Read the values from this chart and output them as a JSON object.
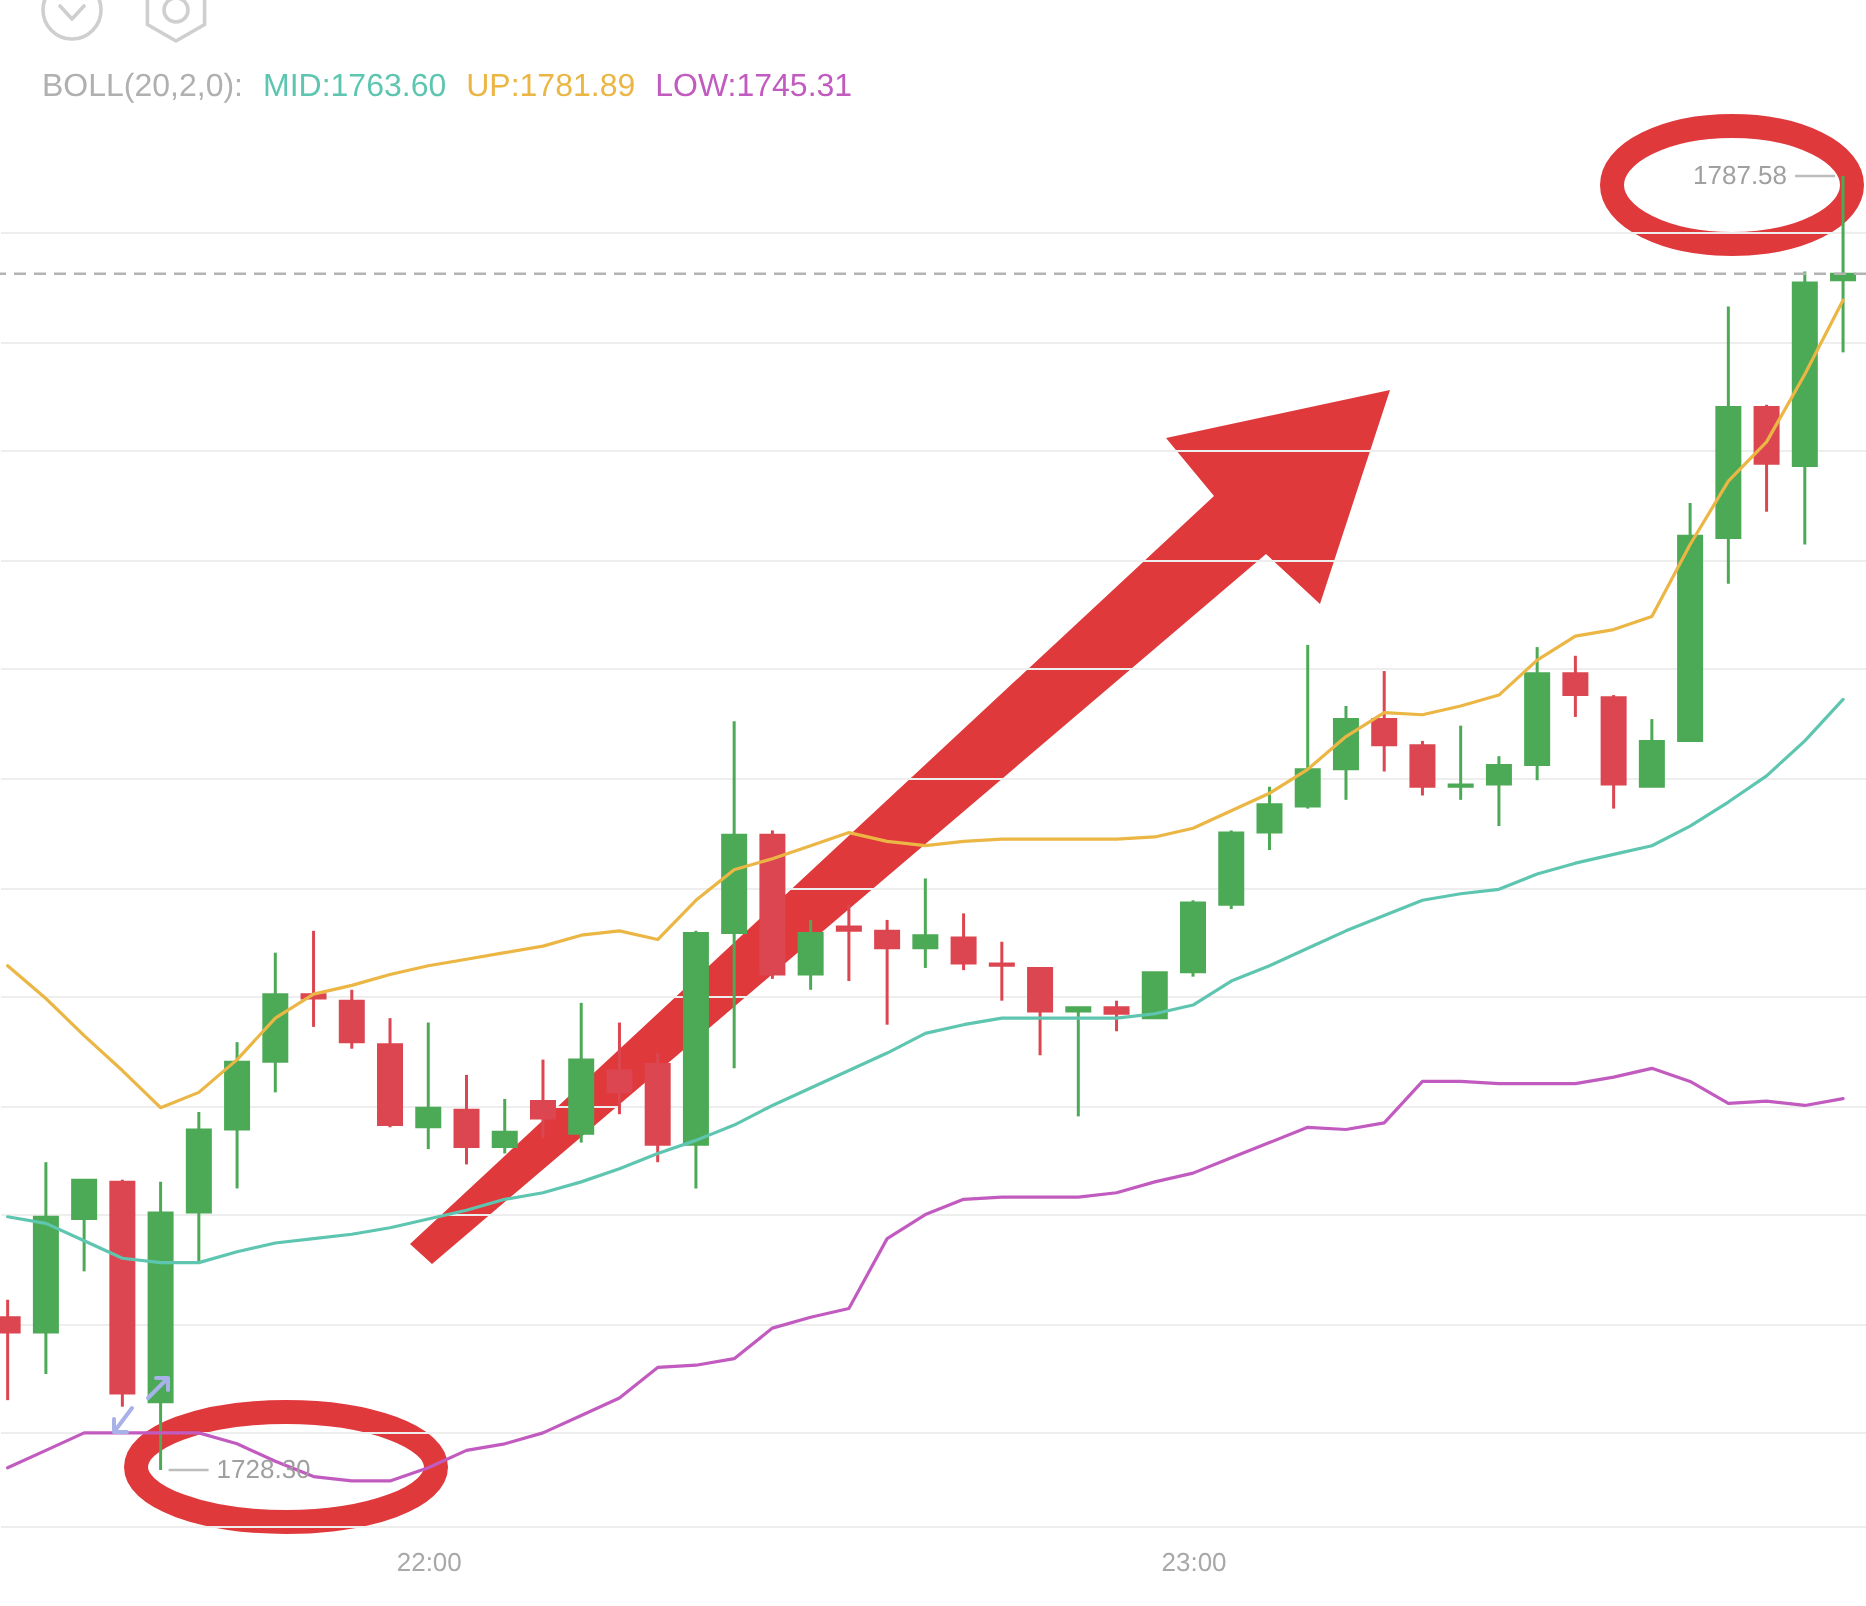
{
  "chart_data": {
    "type": "candlestick",
    "legend_title": "BOLL(20,2,0):",
    "legend": "top left",
    "grid": "y",
    "tick_labels": "x",
    "x": [
      21.45,
      21.5,
      21.55,
      21.6,
      21.65,
      21.7,
      21.75,
      21.8,
      21.85,
      21.9,
      21.95,
      22,
      22.05,
      22.1,
      22.15,
      22.2,
      22.25,
      22.3,
      22.35,
      22.4,
      22.45,
      22.5,
      22.55,
      22.6,
      22.65,
      22.7,
      22.75,
      22.8,
      22.85,
      22.9,
      22.95,
      23,
      23.05,
      23.1,
      23.15,
      23.2,
      23.25,
      23.3,
      23.35,
      23.4,
      23.45,
      23.5,
      23.55,
      23.6,
      23.65,
      23.7,
      23.75,
      23.8,
      23.85
    ],
    "xlim": [
      21.44,
      23.88
    ],
    "xticks": [
      {
        "value": 22,
        "label": "22:00"
      },
      {
        "value": 23,
        "label": "23:00"
      }
    ],
    "yticks": [
      1730,
      1735,
      1740,
      1745,
      1750,
      1755,
      1760,
      1765,
      1770,
      1775,
      1780,
      1785
    ],
    "ohlc": [
      [
        1735.3,
        1736.1,
        1731.5,
        1734.6
      ],
      [
        1734.6,
        1742.4,
        1732.7,
        1739.9
      ],
      [
        1739.8,
        1741.6,
        1737.4,
        1741.6
      ],
      [
        1741.5,
        1741.6,
        1731.2,
        1731.8
      ],
      [
        1731.4,
        1741.5,
        1728.3,
        1740.1
      ],
      [
        1740.1,
        1744.7,
        1737.8,
        1743.9
      ],
      [
        1743.9,
        1747.9,
        1741.2,
        1747.0
      ],
      [
        1747.0,
        1752.0,
        1745.6,
        1750.1
      ],
      [
        1750.1,
        1753.0,
        1748.6,
        1749.9
      ],
      [
        1749.8,
        1750.3,
        1747.6,
        1747.9
      ],
      [
        1747.8,
        1749.0,
        1744.0,
        1744.1
      ],
      [
        1744.0,
        1748.8,
        1743.0,
        1744.9
      ],
      [
        1744.8,
        1746.4,
        1742.3,
        1743.1
      ],
      [
        1743.1,
        1745.3,
        1742.8,
        1743.8
      ],
      [
        1745.2,
        1747.1,
        1743.5,
        1744.4
      ],
      [
        1743.7,
        1749.7,
        1743.3,
        1747.1
      ],
      [
        1746.6,
        1748.8,
        1744.6,
        1745.6
      ],
      [
        1746.9,
        1747.4,
        1742.4,
        1743.2
      ],
      [
        1743.2,
        1753.0,
        1741.2,
        1752.9
      ],
      [
        1752.9,
        1762.6,
        1746.7,
        1757.4
      ],
      [
        1757.4,
        1757.6,
        1750.8,
        1751.0
      ],
      [
        1751.0,
        1753.5,
        1750.3,
        1752.9
      ],
      [
        1753.2,
        1754.2,
        1750.7,
        1753.0
      ],
      [
        1753.0,
        1753.5,
        1748.7,
        1752.2
      ],
      [
        1752.2,
        1755.4,
        1751.3,
        1752.8
      ],
      [
        1752.7,
        1753.8,
        1751.2,
        1751.5
      ],
      [
        1751.5,
        1752.5,
        1749.8,
        1751.4
      ],
      [
        1751.3,
        1751.3,
        1747.3,
        1749.3
      ],
      [
        1749.3,
        1749.5,
        1744.5,
        1749.5
      ],
      [
        1749.5,
        1749.8,
        1748.4,
        1749.2
      ],
      [
        1749.0,
        1751.1,
        1749.0,
        1751.1
      ],
      [
        1751.1,
        1754.4,
        1750.9,
        1754.3
      ],
      [
        1754.2,
        1757.6,
        1754.0,
        1757.5
      ],
      [
        1757.5,
        1759.6,
        1756.7,
        1758.8
      ],
      [
        1758.7,
        1766.1,
        1758.6,
        1760.4
      ],
      [
        1760.4,
        1763.3,
        1759.0,
        1762.7
      ],
      [
        1762.7,
        1764.9,
        1760.3,
        1761.5
      ],
      [
        1761.5,
        1761.7,
        1759.2,
        1759.6
      ],
      [
        1759.6,
        1762.4,
        1759.0,
        1759.7
      ],
      [
        1759.7,
        1761.0,
        1757.8,
        1760.6
      ],
      [
        1760.6,
        1766.0,
        1759.9,
        1764.8
      ],
      [
        1764.8,
        1765.6,
        1762.8,
        1763.8
      ],
      [
        1763.7,
        1763.8,
        1758.6,
        1759.7
      ],
      [
        1759.6,
        1762.7,
        1759.6,
        1761.7
      ],
      [
        1761.7,
        1772.6,
        1761.7,
        1771.1
      ],
      [
        1771.0,
        1781.6,
        1768.9,
        1777.0
      ],
      [
        1777.0,
        1777.1,
        1772.2,
        1774.4
      ],
      [
        1774.3,
        1783.2,
        1770.7,
        1782.7
      ],
      [
        1782.8,
        1787.58,
        1779.5,
        1783.1
      ]
    ],
    "colors": [
      "#dc4650",
      "#4caa56",
      "#4caa56",
      "#dc4650",
      "#4caa56",
      "#4caa56",
      "#4caa56",
      "#4caa56",
      "#dc4650",
      "#dc4650",
      "#dc4650",
      "#4caa56",
      "#dc4650",
      "#4caa56",
      "#dc4650",
      "#4caa56",
      "#dc4650",
      "#dc4650",
      "#4caa56",
      "#4caa56",
      "#dc4650",
      "#4caa56",
      "#dc4650",
      "#dc4650",
      "#4caa56",
      "#dc4650",
      "#dc4650",
      "#dc4650",
      "#4caa56",
      "#dc4650",
      "#4caa56",
      "#4caa56",
      "#4caa56",
      "#4caa56",
      "#4caa56",
      "#4caa56",
      "#dc4650",
      "#dc4650",
      "#4caa56",
      "#4caa56",
      "#4caa56",
      "#dc4650",
      "#dc4650",
      "#4caa56",
      "#4caa56",
      "#4caa56",
      "#dc4650",
      "#4caa56",
      "#4caa56"
    ],
    "series": [
      {
        "name": "MID:1763.60",
        "type": "line",
        "color": "#5ec6b0",
        "values": [
          1739.9,
          1739.6,
          1738.8,
          1738.0,
          1737.8,
          1737.8,
          1738.3,
          1738.7,
          1738.9,
          1739.1,
          1739.4,
          1739.8,
          1740.2,
          1740.7,
          1741.0,
          1741.5,
          1742.1,
          1742.8,
          1743.4,
          1744.1,
          1745.0,
          1745.8,
          1746.6,
          1747.4,
          1748.3,
          1748.7,
          1749.0,
          1749.0,
          1749.0,
          1749.0,
          1749.2,
          1749.6,
          1750.7,
          1751.4,
          1752.2,
          1753.0,
          1753.7,
          1754.4,
          1754.7,
          1754.9,
          1755.6,
          1756.1,
          1756.5,
          1756.9,
          1757.8,
          1758.9,
          1760.1,
          1761.7,
          1763.6
        ]
      },
      {
        "name": "UP:1781.89",
        "type": "line",
        "color": "#ebb644",
        "values": [
          1751.4,
          1749.9,
          1748.2,
          1746.6,
          1744.9,
          1745.6,
          1747.1,
          1749.0,
          1750.1,
          1750.5,
          1751.0,
          1751.4,
          1751.7,
          1752.0,
          1752.3,
          1752.8,
          1753.0,
          1752.6,
          1754.4,
          1755.8,
          1756.3,
          1756.9,
          1757.5,
          1757.1,
          1756.9,
          1757.1,
          1757.2,
          1757.2,
          1757.2,
          1757.2,
          1757.3,
          1757.7,
          1758.5,
          1759.3,
          1760.4,
          1761.9,
          1763.0,
          1762.9,
          1763.3,
          1763.8,
          1765.4,
          1766.5,
          1766.8,
          1767.4,
          1770.7,
          1773.6,
          1775.4,
          1778.5,
          1781.89
        ]
      },
      {
        "name": "LOW:1745.31",
        "type": "line",
        "color": "#c25bbf",
        "values": [
          1728.4,
          1729.2,
          1730.0,
          1730.0,
          1730.0,
          1730.0,
          1729.5,
          1728.7,
          1728.0,
          1727.8,
          1727.8,
          1728.4,
          1729.2,
          1729.5,
          1730.0,
          1730.8,
          1731.6,
          1733.0,
          1733.1,
          1733.4,
          1734.8,
          1735.3,
          1735.7,
          1738.9,
          1740.0,
          1740.7,
          1740.8,
          1740.8,
          1740.8,
          1741.0,
          1741.5,
          1741.9,
          1742.6,
          1743.3,
          1744.0,
          1743.9,
          1744.2,
          1746.1,
          1746.1,
          1746.0,
          1746.0,
          1746.0,
          1746.3,
          1746.7,
          1746.1,
          1745.1,
          1745.2,
          1745.0,
          1745.31
        ]
      }
    ],
    "ref_lines": [
      {
        "axis": "y",
        "value": 1783.1,
        "color": "#b3b3b3",
        "line_style": "dashed"
      }
    ],
    "annotations": [
      {
        "text": "1787.58",
        "x": 23.85,
        "y": 1787.58
      },
      {
        "text": "1728.30",
        "x": 21.65,
        "y": 1728.3
      }
    ]
  }
}
